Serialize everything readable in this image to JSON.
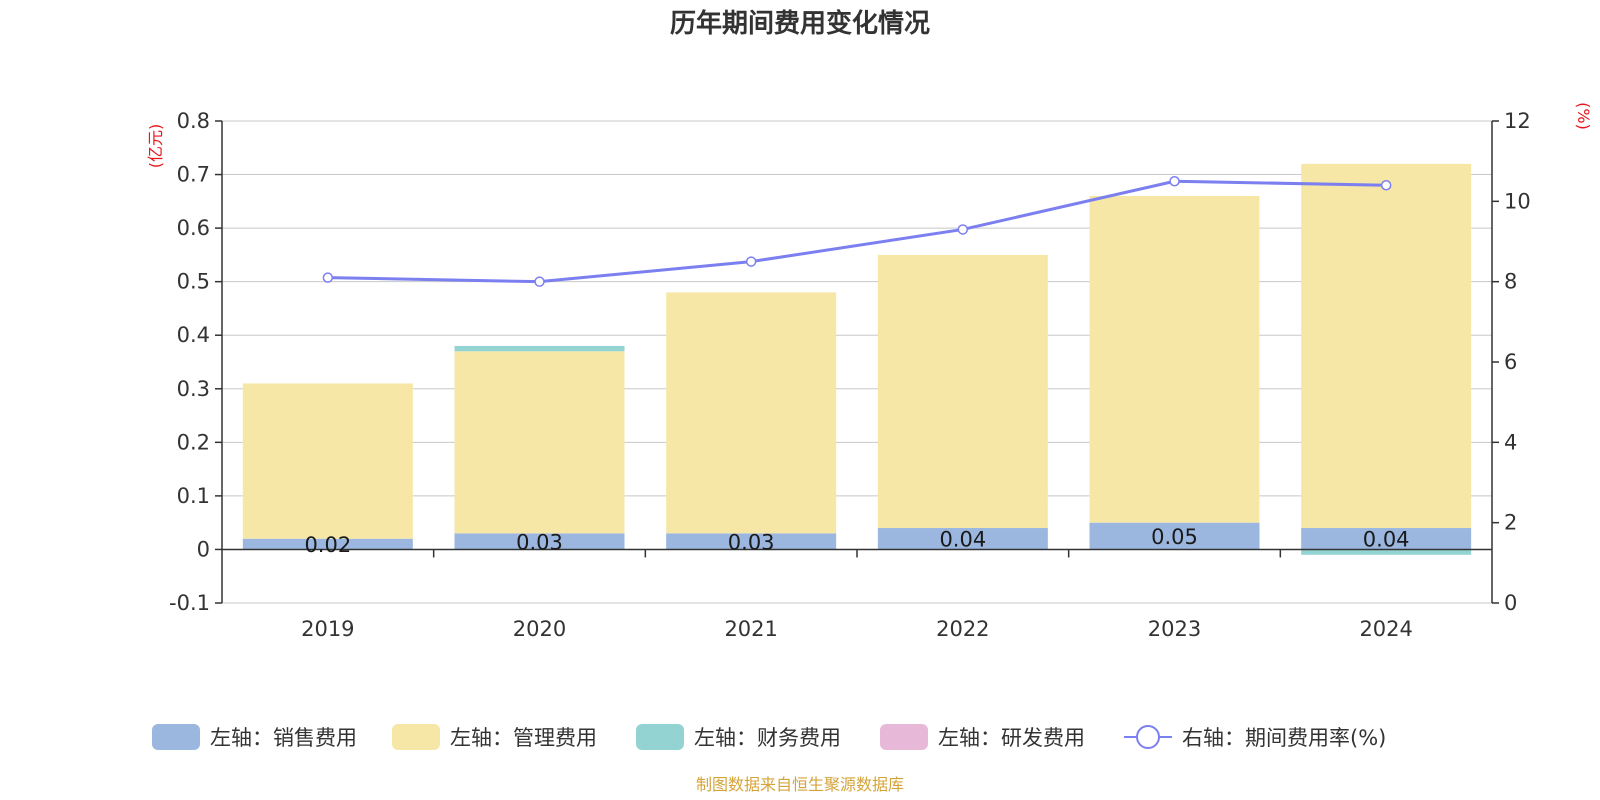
{
  "chart_data": {
    "type": "bar",
    "title": "历年期间费用变化情况",
    "categories": [
      "2019",
      "2020",
      "2021",
      "2022",
      "2023",
      "2024"
    ],
    "series": [
      {
        "name": "左轴：销售费用",
        "axis": "left",
        "color": "#9bb7e0",
        "values": [
          0.02,
          0.03,
          0.03,
          0.04,
          0.05,
          0.04
        ],
        "labels": [
          "0.02",
          "0.03",
          "0.03",
          "0.04",
          "0.05",
          "0.04"
        ]
      },
      {
        "name": "左轴：管理费用",
        "axis": "left",
        "color": "#f7e7a6",
        "values": [
          0.29,
          0.34,
          0.45,
          0.51,
          0.61,
          0.68
        ]
      },
      {
        "name": "左轴：财务费用",
        "axis": "left",
        "color": "#93d4d3",
        "values": [
          0.0,
          0.01,
          0.0,
          0.0,
          0.0,
          -0.01
        ]
      },
      {
        "name": "左轴：研发费用",
        "axis": "left",
        "color": "#e8b8d8",
        "values": [
          0,
          0,
          0,
          0,
          0,
          0
        ]
      },
      {
        "name": "右轴：期间费用率(%)",
        "axis": "right",
        "type": "line",
        "color": "#7b7ff0",
        "values": [
          8.1,
          8.0,
          8.5,
          9.3,
          10.5,
          10.4
        ]
      }
    ],
    "left_axis": {
      "unit": "(亿元)",
      "ylim": [
        -0.1,
        0.8
      ],
      "ticks": [
        "0.8",
        "0.7",
        "0.6",
        "0.5",
        "0.4",
        "0.3",
        "0.2",
        "0.1",
        "0",
        "-0.1"
      ],
      "tick_values": [
        0.8,
        0.7,
        0.6,
        0.5,
        0.4,
        0.3,
        0.2,
        0.1,
        0,
        -0.1
      ]
    },
    "right_axis": {
      "unit": "(%)",
      "ylim": [
        0,
        12
      ],
      "ticks": [
        "12",
        "10",
        "8",
        "6",
        "4",
        "2",
        "0"
      ],
      "tick_values": [
        12,
        10,
        8,
        6,
        4,
        2,
        0
      ]
    },
    "grid": true,
    "legend_position": "bottom"
  },
  "source": "制图数据来自恒生聚源数据库"
}
